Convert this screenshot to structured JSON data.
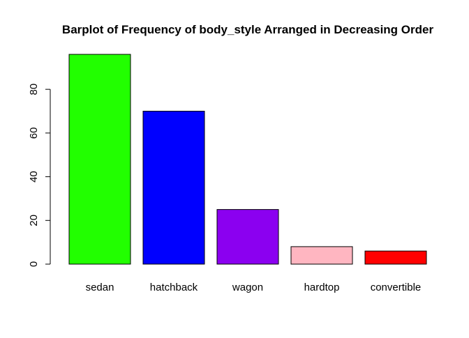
{
  "chart_data": {
    "type": "bar",
    "title": "Barplot of Frequency of body_style Arranged in Decreasing Order",
    "xlabel": "",
    "ylabel": "",
    "categories": [
      "sedan",
      "hatchback",
      "wagon",
      "hardtop",
      "convertible"
    ],
    "values": [
      96,
      70,
      25,
      8,
      6
    ],
    "colors": [
      "#22ff00",
      "#0000ff",
      "#8b00f0",
      "#ffb6c1",
      "#ff0000"
    ],
    "ylim": [
      0,
      96
    ],
    "yticks": [
      0,
      20,
      40,
      60,
      80
    ],
    "grid": false,
    "legend": "none"
  }
}
